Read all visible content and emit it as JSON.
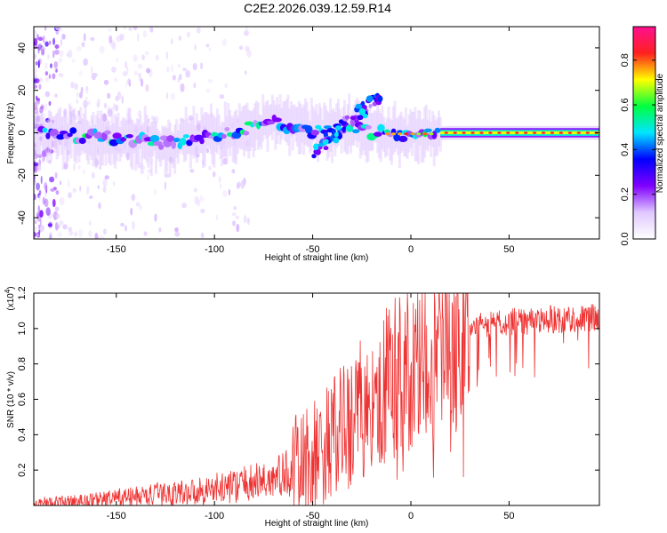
{
  "title": "C2E2.2026.039.12.59.R14",
  "chart_data": [
    {
      "type": "heatmap",
      "xlabel": "Height of straight line (km)",
      "ylabel": "Frequency (Hz)",
      "xlim": [
        -192,
        96
      ],
      "ylim": [
        -50,
        50
      ],
      "xticks": [
        -150,
        -100,
        -50,
        0,
        50
      ],
      "yticks": [
        -40,
        -20,
        0,
        20,
        40
      ],
      "xtick_labels": [
        "-150",
        "-100",
        "-50",
        "0",
        "50"
      ],
      "ytick_labels": [
        "-40",
        "-20",
        "0",
        "20",
        "40"
      ],
      "colorbar": {
        "label": "Normalized spectral amplitude",
        "range": [
          0,
          0.95
        ],
        "ticks": [
          0.0,
          0.2,
          0.4,
          0.6,
          0.8
        ],
        "tick_labels": [
          "0.0",
          "0.2",
          "0.4",
          "0.6",
          "0.8"
        ],
        "colors": [
          "#ffffff",
          "#e0c8ff",
          "#8000ff",
          "#0000ff",
          "#00e5ff",
          "#00ff40",
          "#ffff00",
          "#ff2020",
          "#ff1090"
        ]
      },
      "ridge": {
        "description": "dominant frequency band vs height",
        "x": [
          -190,
          -175,
          -160,
          -140,
          -125,
          -110,
          -95,
          -80,
          -70,
          -60,
          -50,
          -40,
          -30,
          -25,
          -20,
          -15,
          -10,
          0,
          20,
          50,
          96
        ],
        "y": [
          0,
          -1,
          -2,
          -3,
          -5,
          -3,
          -1,
          3,
          5,
          3,
          1,
          2,
          3,
          2,
          0,
          0,
          -1,
          -1,
          0,
          0,
          0
        ]
      }
    },
    {
      "type": "line",
      "xlabel": "Height of straight line (km)",
      "ylabel": "SNR (10 * v/v)",
      "y_scale_label": "(x10",
      "y_scale_exponent": "4",
      "xlim": [
        -192,
        96
      ],
      "ylim": [
        0,
        1.2
      ],
      "xticks": [
        -150,
        -100,
        -50,
        0,
        50
      ],
      "yticks": [
        0.2,
        0.4,
        0.6,
        0.8,
        1.0,
        1.2
      ],
      "xtick_labels": [
        "-150",
        "-100",
        "-50",
        "0",
        "50"
      ],
      "ytick_labels": [
        "0.2",
        "0.4",
        "0.6",
        "0.8",
        "1.0",
        "1.2"
      ],
      "series": [
        {
          "name": "SNR",
          "color": "#ee3333",
          "trend_x": [
            -192,
            -170,
            -150,
            -130,
            -110,
            -90,
            -70,
            -55,
            -45,
            -35,
            -25,
            -15,
            -8,
            0,
            10,
            20,
            30,
            50,
            70,
            96
          ],
          "trend_y": [
            0.01,
            0.02,
            0.04,
            0.06,
            0.08,
            0.11,
            0.15,
            0.22,
            0.3,
            0.42,
            0.55,
            0.65,
            0.72,
            0.75,
            0.82,
            0.92,
            1.0,
            1.04,
            1.05,
            1.06
          ]
        }
      ]
    }
  ]
}
